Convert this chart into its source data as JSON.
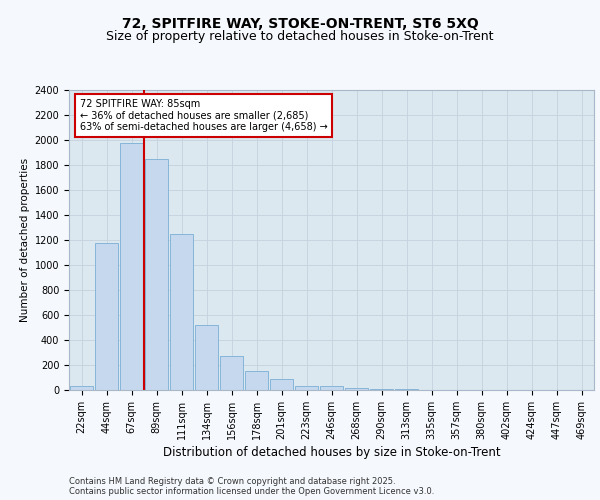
{
  "title1": "72, SPITFIRE WAY, STOKE-ON-TRENT, ST6 5XQ",
  "title2": "Size of property relative to detached houses in Stoke-on-Trent",
  "xlabel": "Distribution of detached houses by size in Stoke-on-Trent",
  "ylabel": "Number of detached properties",
  "categories": [
    "22sqm",
    "44sqm",
    "67sqm",
    "89sqm",
    "111sqm",
    "134sqm",
    "156sqm",
    "178sqm",
    "201sqm",
    "223sqm",
    "246sqm",
    "268sqm",
    "290sqm",
    "313sqm",
    "335sqm",
    "357sqm",
    "380sqm",
    "402sqm",
    "424sqm",
    "447sqm",
    "469sqm"
  ],
  "values": [
    30,
    1175,
    1975,
    1850,
    1250,
    520,
    275,
    150,
    85,
    35,
    35,
    20,
    5,
    5,
    2,
    2,
    2,
    1,
    1,
    1,
    1
  ],
  "bar_color": "#c5d8ed",
  "bar_edge_color": "#7bafd4",
  "red_line_x": 3,
  "annotation_line1": "72 SPITFIRE WAY: 85sqm",
  "annotation_line2": "← 36% of detached houses are smaller (2,685)",
  "annotation_line3": "63% of semi-detached houses are larger (4,658) →",
  "annotation_box_color": "#ffffff",
  "annotation_box_edge_color": "#cc0000",
  "red_line_color": "#cc0000",
  "ylim": [
    0,
    2400
  ],
  "yticks": [
    0,
    200,
    400,
    600,
    800,
    1000,
    1200,
    1400,
    1600,
    1800,
    2000,
    2200,
    2400
  ],
  "grid_color": "#c8d4e0",
  "plot_bg_color": "#dce8f0",
  "fig_bg_color": "#f5f8fc",
  "footer1": "Contains HM Land Registry data © Crown copyright and database right 2025.",
  "footer2": "Contains public sector information licensed under the Open Government Licence v3.0.",
  "title1_fontsize": 10,
  "title2_fontsize": 9,
  "xlabel_fontsize": 8.5,
  "ylabel_fontsize": 7.5,
  "tick_fontsize": 7,
  "footer_fontsize": 6,
  "ann_fontsize": 7
}
